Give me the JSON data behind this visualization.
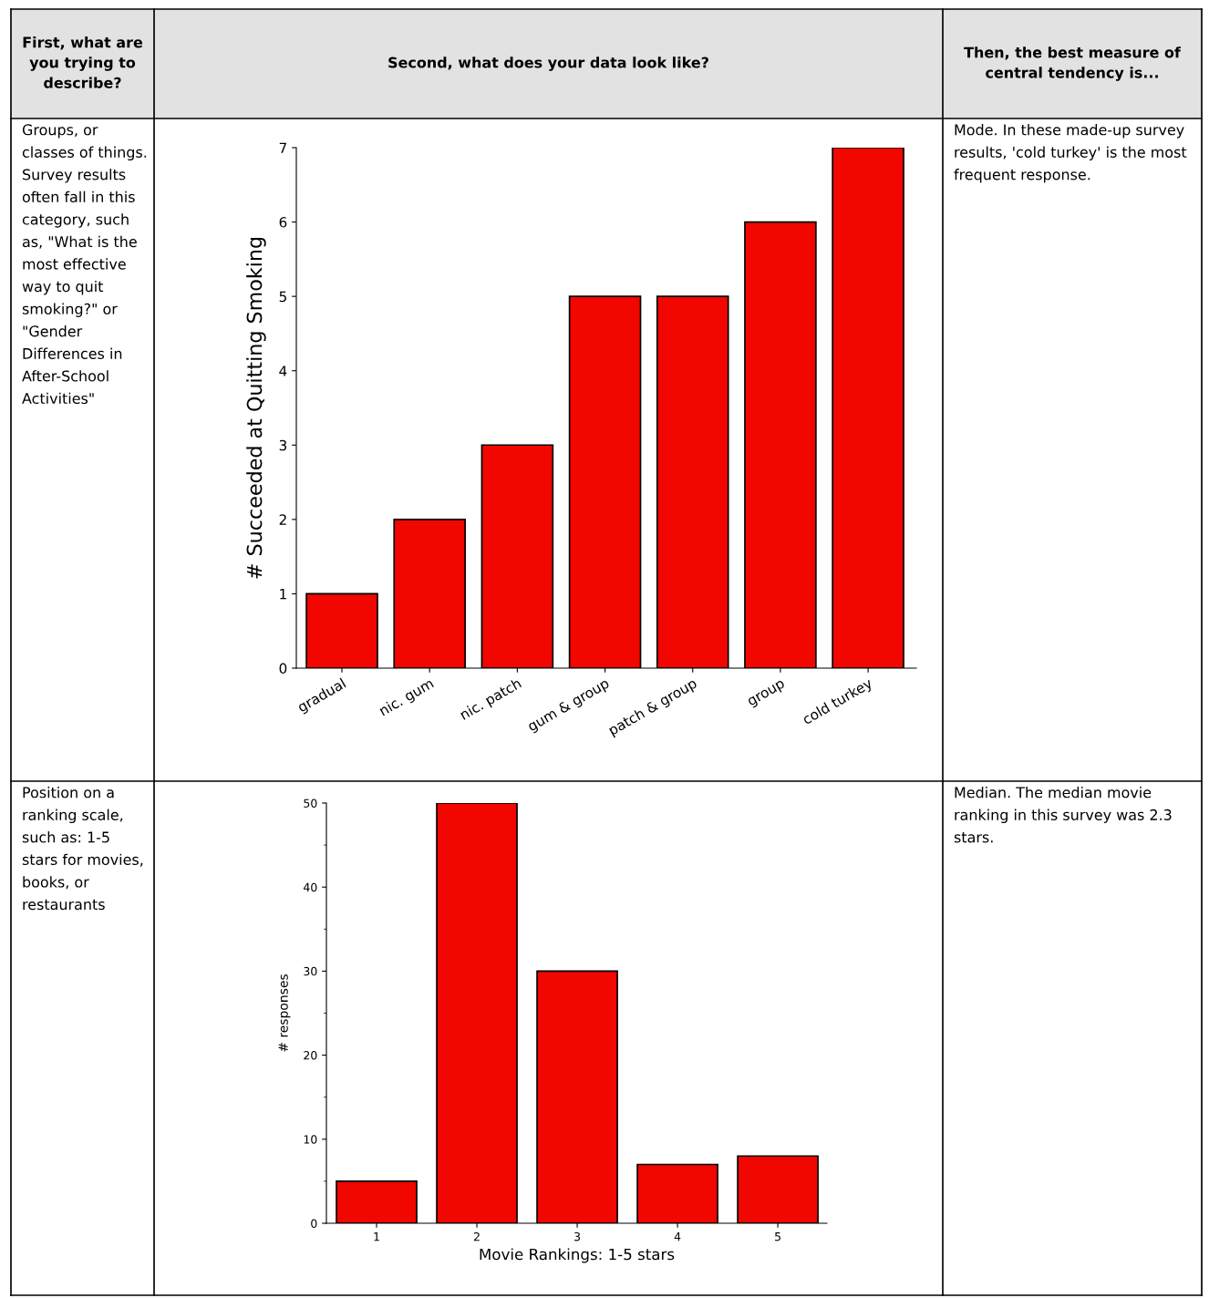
{
  "chart_data": [
    {
      "type": "bar",
      "ylabel": "# Succeeded at Quitting Smoking",
      "categories": [
        "gradual",
        "nic. gum",
        "nic. patch",
        "gum & group",
        "patch & group",
        "group",
        "cold turkey"
      ],
      "values": [
        1,
        2,
        3,
        5,
        5,
        6,
        7
      ],
      "color": "#f20600",
      "ylim": [
        0,
        7
      ],
      "yticks": [
        0,
        1,
        2,
        3,
        4,
        5,
        6,
        7
      ],
      "grid": false,
      "annotations": [
        "First, what are you trying to describe?",
        "Second, what does your data look like?",
        "Then, the best measure of central tendency is...",
        "Groups, or classes of things. Survey results often fall in this category, such as, \"What is the most effective way to quit smoking?\" or \"Gender Differences in After-School Activities\"",
        "Mode. In these made-up survey results, 'cold turkey' is the most frequent response."
      ]
    },
    {
      "type": "bar",
      "xlabel": "Movie Rankings: 1-5 stars",
      "ylabel": "# responses",
      "categories": [
        "1",
        "2",
        "3",
        "4",
        "5"
      ],
      "values": [
        5,
        50,
        30,
        7,
        8
      ],
      "color": "#f20600",
      "ylim": [
        0,
        50
      ],
      "yticks": [
        0,
        10,
        20,
        30,
        40,
        50
      ],
      "grid": false,
      "annotations": [
        "Position on a ranking scale, such as: 1-5 stars for movies, books, or restaurants",
        "Median. The median movie ranking in this survey was 2.3 stars."
      ]
    }
  ]
}
